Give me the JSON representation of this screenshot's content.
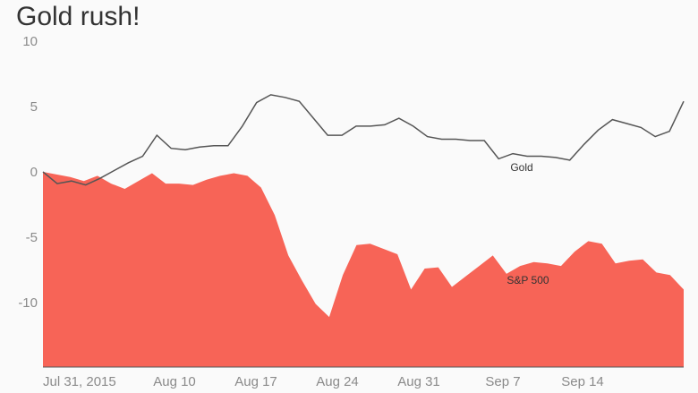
{
  "chart_data": {
    "type": "area",
    "title": "Gold rush!",
    "xlabel": "",
    "ylabel": "",
    "ylim": [
      -15,
      10
    ],
    "yticks": [
      10,
      5,
      0,
      -5,
      -10
    ],
    "x_tick_labels": [
      "Jul 31, 2015",
      "Aug 10",
      "Aug 17",
      "Aug 24",
      "Aug 31",
      "Sep 7",
      "Sep 14"
    ],
    "grid": false,
    "colors": {
      "sp500": "#f76457",
      "gold": "#555555",
      "axis": "#555555",
      "ticks": "#8a8a8a",
      "title": "#333333"
    },
    "series": [
      {
        "name": "Gold",
        "kind": "line",
        "values": [
          0,
          -0.9,
          -0.7,
          -1.0,
          -0.5,
          0.1,
          0.7,
          1.2,
          2.8,
          1.8,
          1.7,
          1.9,
          2.0,
          2.0,
          3.5,
          5.3,
          5.9,
          5.7,
          5.4,
          4.1,
          2.8,
          2.8,
          3.5,
          3.5,
          3.6,
          4.1,
          3.5,
          2.7,
          2.5,
          2.5,
          2.4,
          2.4,
          1.0,
          1.4,
          1.2,
          1.2,
          1.1,
          0.9,
          2.1,
          3.2,
          4.0,
          3.7,
          3.4,
          2.7,
          3.1,
          5.4
        ]
      },
      {
        "name": "S&P 500",
        "kind": "area",
        "values": [
          0,
          -0.2,
          -0.4,
          -0.7,
          -0.3,
          -0.9,
          -1.3,
          -0.7,
          -0.1,
          -0.9,
          -0.9,
          -1.0,
          -0.6,
          -0.3,
          -0.1,
          -0.3,
          -1.2,
          -3.3,
          -6.4,
          -8.3,
          -10.1,
          -11.1,
          -7.9,
          -5.6,
          -5.5,
          -5.9,
          -6.3,
          -9.0,
          -7.4,
          -7.3,
          -8.8,
          -8.0,
          -7.2,
          -6.4,
          -7.8,
          -7.2,
          -6.9,
          -7.0,
          -7.2,
          -6.1,
          -5.3,
          -5.5,
          -7.0,
          -6.8,
          -6.7,
          -7.7,
          -7.9,
          -9.0
        ]
      }
    ]
  }
}
